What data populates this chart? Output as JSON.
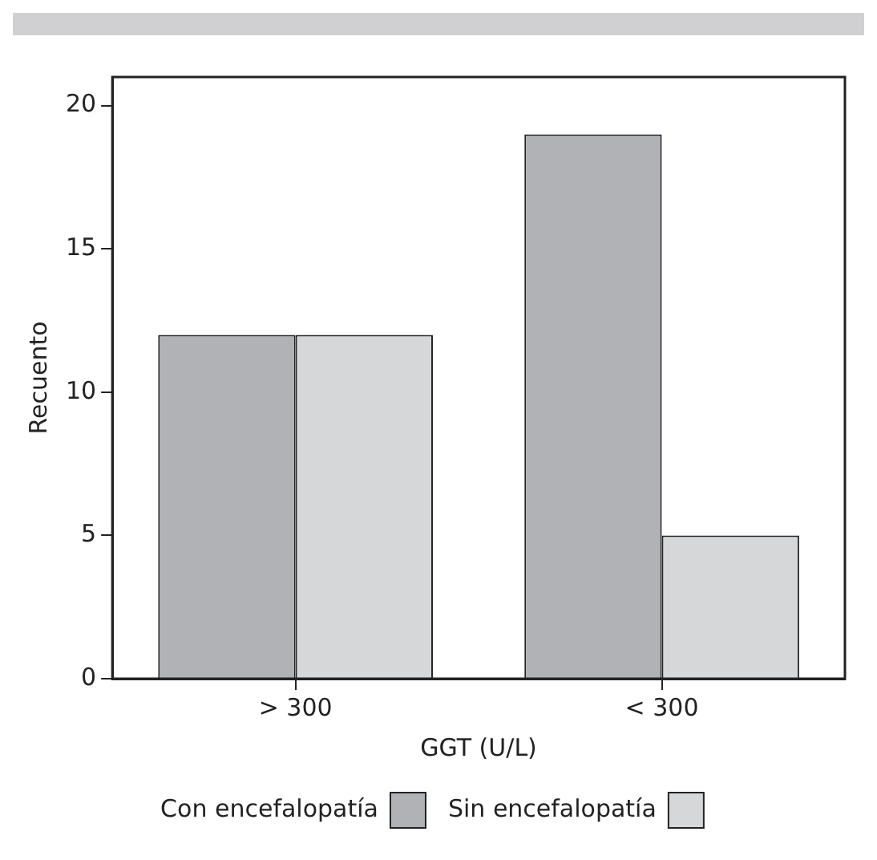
{
  "chart_data": {
    "type": "bar",
    "xlabel": "GGT (U/L)",
    "ylabel": "Recuento",
    "categories": [
      "> 300",
      "< 300"
    ],
    "series": [
      {
        "name": "Con encefalopatía",
        "color": "#b1b2b6",
        "values": [
          12,
          19
        ]
      },
      {
        "name": "Sin encefalopatía",
        "color": "#d6d7d9",
        "values": [
          12,
          5
        ]
      }
    ],
    "ylim": [
      0,
      21
    ],
    "yticks": [
      0,
      5,
      10,
      15,
      20
    ],
    "grid": false,
    "legend": "bottom"
  }
}
